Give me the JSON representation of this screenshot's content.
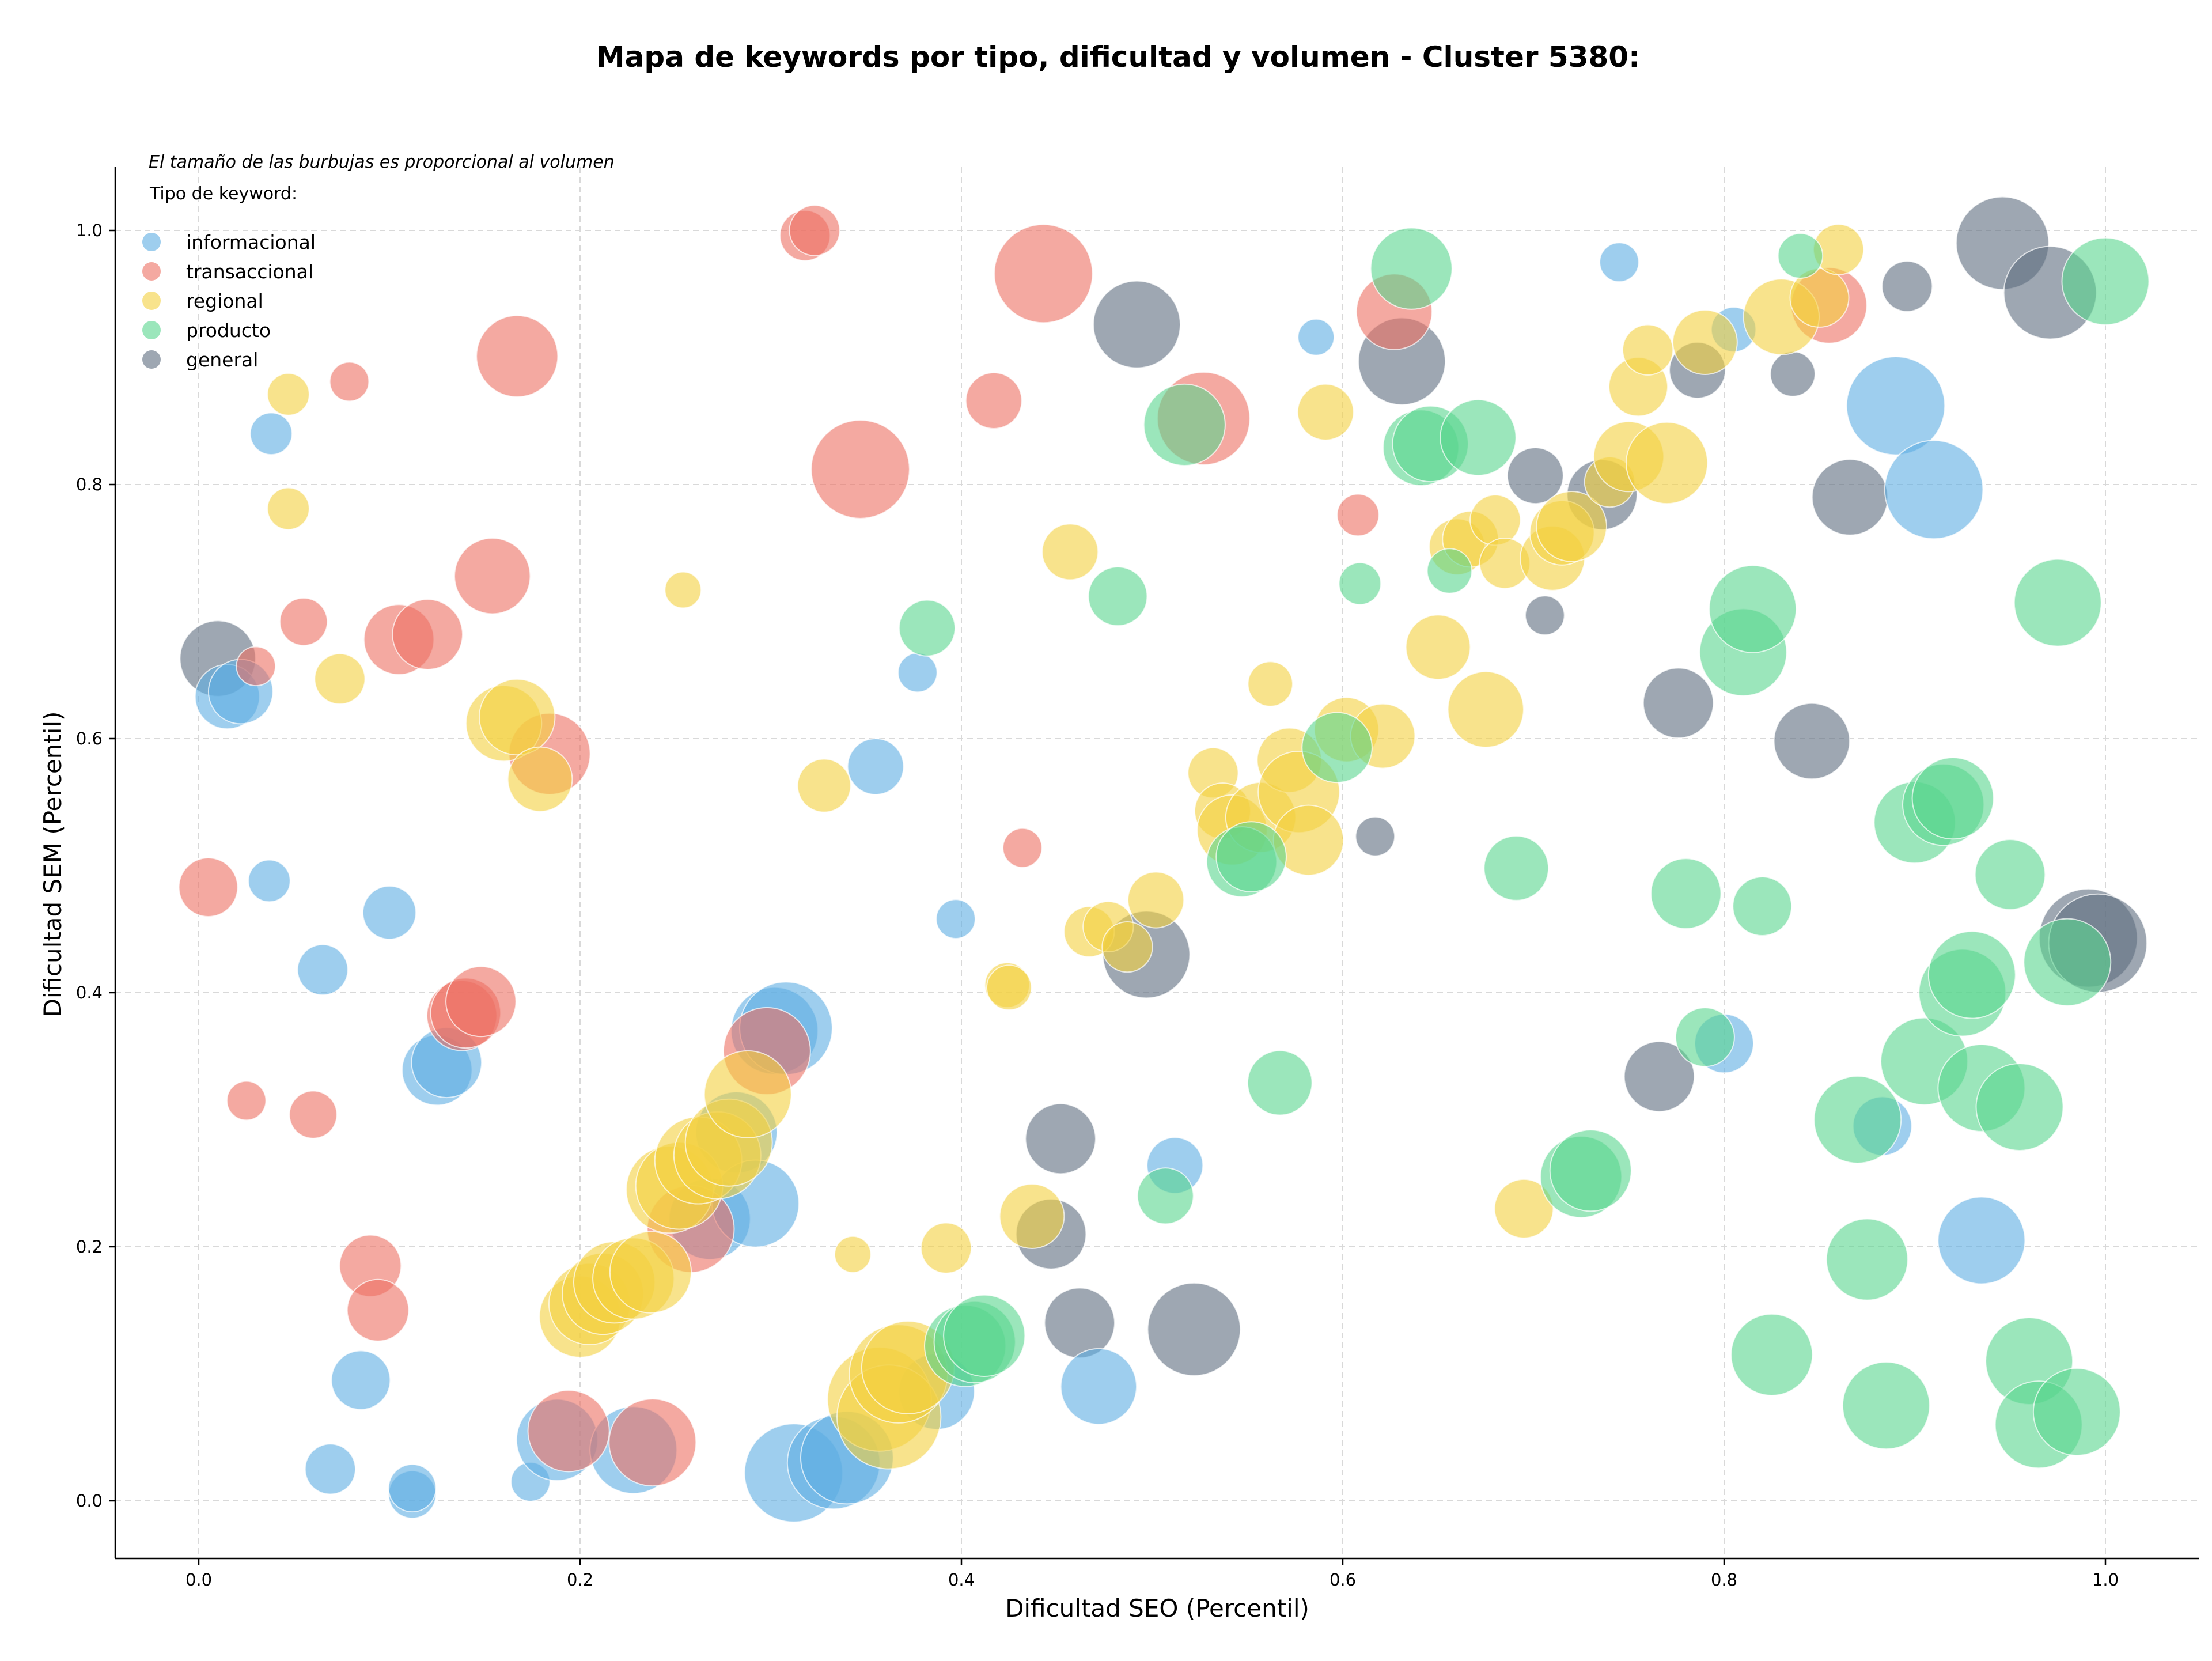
{
  "chart_data": {
    "type": "scatter",
    "title": "Mapa de keywords por tipo, dificultad y volumen - Cluster 5380:",
    "xlabel": "Dificultad SEO (Percentil)",
    "ylabel": "Dificultad SEM (Percentil)",
    "xlim": [
      -0.045,
      1.05
    ],
    "ylim": [
      -0.045,
      1.05
    ],
    "xticks": [
      "0.0",
      "0.2",
      "0.4",
      "0.6",
      "0.8",
      "1.0"
    ],
    "yticks": [
      "0.0",
      "0.2",
      "0.4",
      "0.6",
      "0.8",
      "1.0"
    ],
    "grid": true,
    "legend": {
      "placement": "top-left",
      "note": "El tamaño de las burbujas es proporcional al volumen",
      "title": "Tipo de keyword:"
    },
    "series": [
      {
        "name": "informacional",
        "color": "#5dade2",
        "points": [
          {
            "x": 0.038,
            "y": 0.84,
            "r": 14
          },
          {
            "x": 0.037,
            "y": 0.488,
            "r": 14
          },
          {
            "x": 0.1,
            "y": 0.463,
            "r": 18
          },
          {
            "x": 0.065,
            "y": 0.418,
            "r": 17
          },
          {
            "x": 0.015,
            "y": 0.633,
            "r": 22
          },
          {
            "x": 0.022,
            "y": 0.637,
            "r": 22
          },
          {
            "x": 0.125,
            "y": 0.339,
            "r": 24
          },
          {
            "x": 0.13,
            "y": 0.345,
            "r": 24
          },
          {
            "x": 0.085,
            "y": 0.095,
            "r": 20
          },
          {
            "x": 0.069,
            "y": 0.025,
            "r": 17
          },
          {
            "x": 0.112,
            "y": 0.005,
            "r": 16
          },
          {
            "x": 0.112,
            "y": 0.01,
            "r": 16
          },
          {
            "x": 0.174,
            "y": 0.015,
            "r": 13
          },
          {
            "x": 0.188,
            "y": 0.048,
            "r": 28
          },
          {
            "x": 0.228,
            "y": 0.04,
            "r": 30
          },
          {
            "x": 0.268,
            "y": 0.222,
            "r": 28
          },
          {
            "x": 0.282,
            "y": 0.29,
            "r": 28
          },
          {
            "x": 0.292,
            "y": 0.234,
            "r": 30
          },
          {
            "x": 0.302,
            "y": 0.37,
            "r": 30
          },
          {
            "x": 0.308,
            "y": 0.372,
            "r": 32
          },
          {
            "x": 0.312,
            "y": 0.022,
            "r": 34
          },
          {
            "x": 0.333,
            "y": 0.03,
            "r": 32
          },
          {
            "x": 0.34,
            "y": 0.034,
            "r": 32
          },
          {
            "x": 0.355,
            "y": 0.578,
            "r": 19
          },
          {
            "x": 0.377,
            "y": 0.652,
            "r": 13
          },
          {
            "x": 0.387,
            "y": 0.086,
            "r": 26
          },
          {
            "x": 0.397,
            "y": 0.458,
            "r": 13
          },
          {
            "x": 0.472,
            "y": 0.09,
            "r": 26
          },
          {
            "x": 0.512,
            "y": 0.264,
            "r": 19
          },
          {
            "x": 0.586,
            "y": 0.916,
            "r": 12
          },
          {
            "x": 0.745,
            "y": 0.975,
            "r": 13
          },
          {
            "x": 0.8,
            "y": 0.36,
            "r": 20
          },
          {
            "x": 0.805,
            "y": 0.922,
            "r": 15
          },
          {
            "x": 0.89,
            "y": 0.862,
            "r": 34
          },
          {
            "x": 0.91,
            "y": 0.796,
            "r": 34
          },
          {
            "x": 0.935,
            "y": 0.205,
            "r": 30
          },
          {
            "x": 0.883,
            "y": 0.295,
            "r": 20
          }
        ]
      },
      {
        "name": "transaccional",
        "color": "#ec7063",
        "points": [
          {
            "x": 0.005,
            "y": 0.483,
            "r": 20
          },
          {
            "x": 0.025,
            "y": 0.315,
            "r": 13
          },
          {
            "x": 0.03,
            "y": 0.657,
            "r": 13
          },
          {
            "x": 0.055,
            "y": 0.692,
            "r": 16
          },
          {
            "x": 0.06,
            "y": 0.304,
            "r": 16
          },
          {
            "x": 0.079,
            "y": 0.881,
            "r": 13
          },
          {
            "x": 0.09,
            "y": 0.185,
            "r": 21
          },
          {
            "x": 0.094,
            "y": 0.15,
            "r": 21
          },
          {
            "x": 0.105,
            "y": 0.678,
            "r": 24
          },
          {
            "x": 0.12,
            "y": 0.682,
            "r": 24
          },
          {
            "x": 0.138,
            "y": 0.382,
            "r": 24
          },
          {
            "x": 0.14,
            "y": 0.384,
            "r": 24
          },
          {
            "x": 0.148,
            "y": 0.393,
            "r": 24
          },
          {
            "x": 0.154,
            "y": 0.728,
            "r": 26
          },
          {
            "x": 0.167,
            "y": 0.901,
            "r": 28
          },
          {
            "x": 0.184,
            "y": 0.588,
            "r": 28
          },
          {
            "x": 0.194,
            "y": 0.055,
            "r": 28
          },
          {
            "x": 0.238,
            "y": 0.046,
            "r": 30
          },
          {
            "x": 0.258,
            "y": 0.214,
            "r": 30
          },
          {
            "x": 0.298,
            "y": 0.354,
            "r": 30
          },
          {
            "x": 0.318,
            "y": 0.996,
            "r": 17
          },
          {
            "x": 0.323,
            "y": 1.0,
            "r": 17
          },
          {
            "x": 0.347,
            "y": 0.812,
            "r": 34
          },
          {
            "x": 0.417,
            "y": 0.866,
            "r": 19
          },
          {
            "x": 0.432,
            "y": 0.514,
            "r": 13
          },
          {
            "x": 0.443,
            "y": 0.966,
            "r": 34
          },
          {
            "x": 0.527,
            "y": 0.852,
            "r": 32
          },
          {
            "x": 0.608,
            "y": 0.776,
            "r": 14
          },
          {
            "x": 0.627,
            "y": 0.936,
            "r": 26
          },
          {
            "x": 0.855,
            "y": 0.941,
            "r": 26
          }
        ]
      },
      {
        "name": "regional",
        "color": "#f4d03f",
        "points": [
          {
            "x": 0.047,
            "y": 0.871,
            "r": 14
          },
          {
            "x": 0.047,
            "y": 0.781,
            "r": 14
          },
          {
            "x": 0.074,
            "y": 0.647,
            "r": 17
          },
          {
            "x": 0.16,
            "y": 0.612,
            "r": 26
          },
          {
            "x": 0.167,
            "y": 0.617,
            "r": 26
          },
          {
            "x": 0.179,
            "y": 0.568,
            "r": 22
          },
          {
            "x": 0.2,
            "y": 0.145,
            "r": 28
          },
          {
            "x": 0.205,
            "y": 0.155,
            "r": 28
          },
          {
            "x": 0.212,
            "y": 0.163,
            "r": 28
          },
          {
            "x": 0.218,
            "y": 0.172,
            "r": 28
          },
          {
            "x": 0.228,
            "y": 0.175,
            "r": 28
          },
          {
            "x": 0.237,
            "y": 0.18,
            "r": 28
          },
          {
            "x": 0.247,
            "y": 0.245,
            "r": 30
          },
          {
            "x": 0.252,
            "y": 0.248,
            "r": 30
          },
          {
            "x": 0.262,
            "y": 0.268,
            "r": 30
          },
          {
            "x": 0.272,
            "y": 0.272,
            "r": 30
          },
          {
            "x": 0.278,
            "y": 0.282,
            "r": 30
          },
          {
            "x": 0.288,
            "y": 0.32,
            "r": 30
          },
          {
            "x": 0.254,
            "y": 0.717,
            "r": 12
          },
          {
            "x": 0.328,
            "y": 0.563,
            "r": 18
          },
          {
            "x": 0.343,
            "y": 0.194,
            "r": 12
          },
          {
            "x": 0.357,
            "y": 0.08,
            "r": 36
          },
          {
            "x": 0.362,
            "y": 0.066,
            "r": 36
          },
          {
            "x": 0.367,
            "y": 0.1,
            "r": 34
          },
          {
            "x": 0.372,
            "y": 0.105,
            "r": 32
          },
          {
            "x": 0.392,
            "y": 0.199,
            "r": 17
          },
          {
            "x": 0.424,
            "y": 0.406,
            "r": 15
          },
          {
            "x": 0.425,
            "y": 0.404,
            "r": 15
          },
          {
            "x": 0.437,
            "y": 0.224,
            "r": 22
          },
          {
            "x": 0.457,
            "y": 0.747,
            "r": 19
          },
          {
            "x": 0.467,
            "y": 0.448,
            "r": 17
          },
          {
            "x": 0.477,
            "y": 0.452,
            "r": 17
          },
          {
            "x": 0.487,
            "y": 0.436,
            "r": 17
          },
          {
            "x": 0.502,
            "y": 0.473,
            "r": 19
          },
          {
            "x": 0.532,
            "y": 0.573,
            "r": 17
          },
          {
            "x": 0.537,
            "y": 0.543,
            "r": 19
          },
          {
            "x": 0.542,
            "y": 0.528,
            "r": 24
          },
          {
            "x": 0.557,
            "y": 0.538,
            "r": 24
          },
          {
            "x": 0.562,
            "y": 0.643,
            "r": 15
          },
          {
            "x": 0.572,
            "y": 0.583,
            "r": 22
          },
          {
            "x": 0.577,
            "y": 0.558,
            "r": 28
          },
          {
            "x": 0.582,
            "y": 0.52,
            "r": 24
          },
          {
            "x": 0.591,
            "y": 0.857,
            "r": 19
          },
          {
            "x": 0.602,
            "y": 0.607,
            "r": 22
          },
          {
            "x": 0.621,
            "y": 0.602,
            "r": 22
          },
          {
            "x": 0.65,
            "y": 0.672,
            "r": 22
          },
          {
            "x": 0.66,
            "y": 0.751,
            "r": 19
          },
          {
            "x": 0.667,
            "y": 0.757,
            "r": 19
          },
          {
            "x": 0.68,
            "y": 0.772,
            "r": 17
          },
          {
            "x": 0.685,
            "y": 0.738,
            "r": 17
          },
          {
            "x": 0.675,
            "y": 0.623,
            "r": 26
          },
          {
            "x": 0.695,
            "y": 0.23,
            "r": 20
          },
          {
            "x": 0.71,
            "y": 0.742,
            "r": 22
          },
          {
            "x": 0.715,
            "y": 0.762,
            "r": 22
          },
          {
            "x": 0.72,
            "y": 0.767,
            "r": 24
          },
          {
            "x": 0.74,
            "y": 0.802,
            "r": 17
          },
          {
            "x": 0.75,
            "y": 0.822,
            "r": 24
          },
          {
            "x": 0.755,
            "y": 0.877,
            "r": 20
          },
          {
            "x": 0.76,
            "y": 0.906,
            "r": 17
          },
          {
            "x": 0.77,
            "y": 0.817,
            "r": 28
          },
          {
            "x": 0.79,
            "y": 0.912,
            "r": 22
          },
          {
            "x": 0.83,
            "y": 0.932,
            "r": 26
          },
          {
            "x": 0.85,
            "y": 0.947,
            "r": 20
          },
          {
            "x": 0.86,
            "y": 0.985,
            "r": 17
          }
        ]
      },
      {
        "name": "producto",
        "color": "#58d68d",
        "points": [
          {
            "x": 0.382,
            "y": 0.687,
            "r": 19
          },
          {
            "x": 0.402,
            "y": 0.122,
            "r": 28
          },
          {
            "x": 0.407,
            "y": 0.125,
            "r": 28
          },
          {
            "x": 0.412,
            "y": 0.13,
            "r": 28
          },
          {
            "x": 0.482,
            "y": 0.712,
            "r": 20
          },
          {
            "x": 0.507,
            "y": 0.24,
            "r": 19
          },
          {
            "x": 0.517,
            "y": 0.847,
            "r": 28
          },
          {
            "x": 0.547,
            "y": 0.503,
            "r": 24
          },
          {
            "x": 0.552,
            "y": 0.507,
            "r": 24
          },
          {
            "x": 0.567,
            "y": 0.329,
            "r": 22
          },
          {
            "x": 0.597,
            "y": 0.593,
            "r": 24
          },
          {
            "x": 0.609,
            "y": 0.722,
            "r": 14
          },
          {
            "x": 0.636,
            "y": 0.97,
            "r": 28
          },
          {
            "x": 0.641,
            "y": 0.829,
            "r": 26
          },
          {
            "x": 0.646,
            "y": 0.832,
            "r": 26
          },
          {
            "x": 0.656,
            "y": 0.732,
            "r": 15
          },
          {
            "x": 0.671,
            "y": 0.837,
            "r": 26
          },
          {
            "x": 0.691,
            "y": 0.498,
            "r": 22
          },
          {
            "x": 0.725,
            "y": 0.255,
            "r": 28
          },
          {
            "x": 0.73,
            "y": 0.26,
            "r": 28
          },
          {
            "x": 0.78,
            "y": 0.478,
            "r": 24
          },
          {
            "x": 0.79,
            "y": 0.365,
            "r": 20
          },
          {
            "x": 0.81,
            "y": 0.668,
            "r": 30
          },
          {
            "x": 0.815,
            "y": 0.702,
            "r": 30
          },
          {
            "x": 0.82,
            "y": 0.468,
            "r": 20
          },
          {
            "x": 0.825,
            "y": 0.115,
            "r": 28
          },
          {
            "x": 0.84,
            "y": 0.98,
            "r": 15
          },
          {
            "x": 0.87,
            "y": 0.3,
            "r": 30
          },
          {
            "x": 0.875,
            "y": 0.19,
            "r": 28
          },
          {
            "x": 0.885,
            "y": 0.075,
            "r": 30
          },
          {
            "x": 0.9,
            "y": 0.534,
            "r": 28
          },
          {
            "x": 0.905,
            "y": 0.346,
            "r": 30
          },
          {
            "x": 0.915,
            "y": 0.548,
            "r": 28
          },
          {
            "x": 0.92,
            "y": 0.553,
            "r": 28
          },
          {
            "x": 0.925,
            "y": 0.4,
            "r": 30
          },
          {
            "x": 0.93,
            "y": 0.414,
            "r": 30
          },
          {
            "x": 0.935,
            "y": 0.325,
            "r": 30
          },
          {
            "x": 0.95,
            "y": 0.493,
            "r": 24
          },
          {
            "x": 0.955,
            "y": 0.31,
            "r": 30
          },
          {
            "x": 0.96,
            "y": 0.11,
            "r": 30
          },
          {
            "x": 0.965,
            "y": 0.06,
            "r": 30
          },
          {
            "x": 0.975,
            "y": 0.707,
            "r": 30
          },
          {
            "x": 0.98,
            "y": 0.424,
            "r": 30
          },
          {
            "x": 0.985,
            "y": 0.07,
            "r": 30
          },
          {
            "x": 1.0,
            "y": 0.96,
            "r": 30
          }
        ]
      },
      {
        "name": "general",
        "color": "#5d6d7e",
        "points": [
          {
            "x": 0.01,
            "y": 0.663,
            "r": 26
          },
          {
            "x": 0.447,
            "y": 0.21,
            "r": 24
          },
          {
            "x": 0.452,
            "y": 0.285,
            "r": 24
          },
          {
            "x": 0.462,
            "y": 0.14,
            "r": 24
          },
          {
            "x": 0.492,
            "y": 0.926,
            "r": 30
          },
          {
            "x": 0.497,
            "y": 0.43,
            "r": 30
          },
          {
            "x": 0.522,
            "y": 0.135,
            "r": 32
          },
          {
            "x": 0.617,
            "y": 0.523,
            "r": 13
          },
          {
            "x": 0.631,
            "y": 0.897,
            "r": 30
          },
          {
            "x": 0.701,
            "y": 0.807,
            "r": 19
          },
          {
            "x": 0.706,
            "y": 0.697,
            "r": 13
          },
          {
            "x": 0.736,
            "y": 0.792,
            "r": 24
          },
          {
            "x": 0.766,
            "y": 0.334,
            "r": 24
          },
          {
            "x": 0.776,
            "y": 0.628,
            "r": 24
          },
          {
            "x": 0.786,
            "y": 0.89,
            "r": 19
          },
          {
            "x": 0.836,
            "y": 0.887,
            "r": 15
          },
          {
            "x": 0.846,
            "y": 0.598,
            "r": 26
          },
          {
            "x": 0.866,
            "y": 0.79,
            "r": 26
          },
          {
            "x": 0.896,
            "y": 0.956,
            "r": 17
          },
          {
            "x": 0.946,
            "y": 0.99,
            "r": 32
          },
          {
            "x": 0.971,
            "y": 0.951,
            "r": 32
          },
          {
            "x": 0.991,
            "y": 0.443,
            "r": 34
          },
          {
            "x": 0.996,
            "y": 0.439,
            "r": 34
          }
        ]
      }
    ]
  }
}
